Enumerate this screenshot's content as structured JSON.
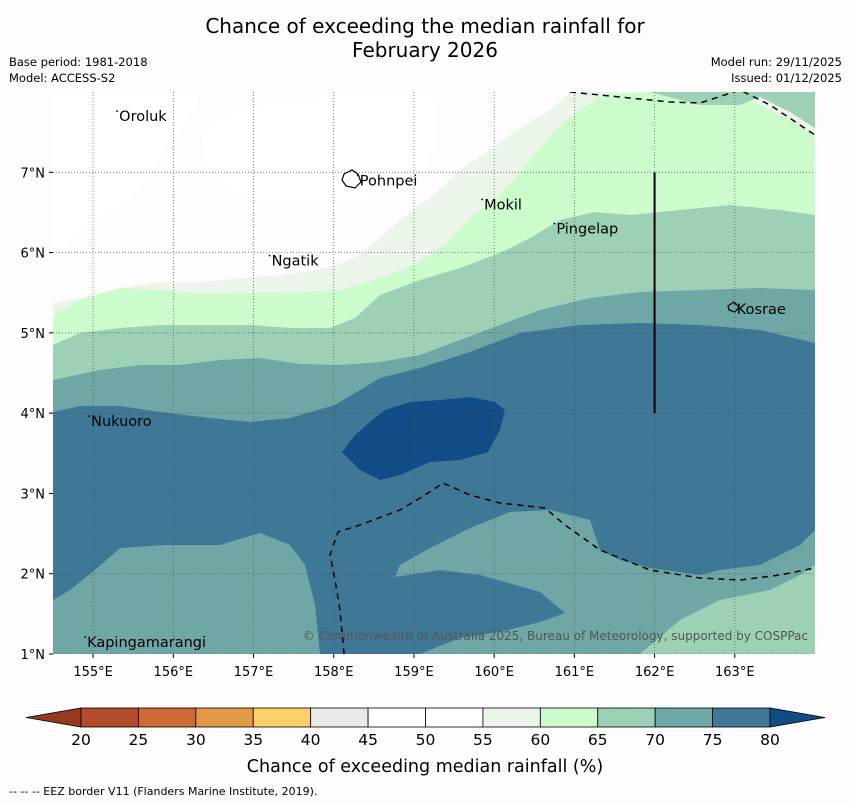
{
  "title_line1": "Chance of exceeding the median rainfall for",
  "title_line2": "February 2026",
  "base_period": "Base period: 1981-2018",
  "model": "Model: ACCESS-S2",
  "model_run": "Model run: 29/11/2025",
  "issued": "Issued: 01/12/2025",
  "copyright": "© Commonwealth of Australia 2025, Bureau of Meteorology, supported by COSPPac",
  "footer": "--  --  -- EEZ border V11 (Flanders Marine Institute, 2019).",
  "map": {
    "lon_range": [
      154.5,
      164.0
    ],
    "lat_range": [
      1.0,
      8.0
    ],
    "lat_ticks": [
      {
        "value": 7,
        "label": "7°N"
      },
      {
        "value": 6,
        "label": "6°N"
      },
      {
        "value": 5,
        "label": "5°N"
      },
      {
        "value": 4,
        "label": "4°N"
      },
      {
        "value": 3,
        "label": "3°N"
      },
      {
        "value": 2,
        "label": "2°N"
      },
      {
        "value": 1,
        "label": "1°N"
      }
    ],
    "lon_ticks": [
      {
        "value": 155,
        "label": "155°E"
      },
      {
        "value": 156,
        "label": "156°E"
      },
      {
        "value": 157,
        "label": "157°E"
      },
      {
        "value": 158,
        "label": "158°E"
      },
      {
        "value": 159,
        "label": "159°E"
      },
      {
        "value": 160,
        "label": "160°E"
      },
      {
        "value": 161,
        "label": "161°E"
      },
      {
        "value": 162,
        "label": "162°E"
      },
      {
        "value": 163,
        "label": "163°E"
      }
    ],
    "places": [
      {
        "name": "Oroluk",
        "lon": 155.3,
        "lat": 7.65
      },
      {
        "name": "Pohnpei",
        "lon": 158.3,
        "lat": 6.85
      },
      {
        "name": "Mokil",
        "lon": 159.85,
        "lat": 6.55
      },
      {
        "name": "Pingelap",
        "lon": 160.75,
        "lat": 6.25
      },
      {
        "name": "Ngatik",
        "lon": 157.2,
        "lat": 5.85
      },
      {
        "name": "Kosrae",
        "lon": 163.0,
        "lat": 5.25
      },
      {
        "name": "Nukuoro",
        "lon": 154.95,
        "lat": 3.85
      },
      {
        "name": "Kapingamarangi",
        "lon": 154.9,
        "lat": 1.1
      }
    ],
    "boundary_segment": {
      "lon": 162.0,
      "lat_start": 4.0,
      "lat_end": 7.0
    }
  },
  "colorbar": {
    "label": "Chance of exceeding median rainfall (%)",
    "ticks": [
      "20",
      "25",
      "30",
      "35",
      "40",
      "45",
      "50",
      "55",
      "60",
      "65",
      "70",
      "75",
      "80"
    ],
    "colors": [
      "#b34c2a",
      "#cf6a34",
      "#e39a48",
      "#fdd06b",
      "#e9e9e6",
      "#ffffff",
      "#ffffff",
      "#ebf5e9",
      "#ccfccc",
      "#9dd1b6",
      "#6fa6a6",
      "#3f7897"
    ],
    "under_color": "#953a20",
    "over_color": "#104c86"
  },
  "contour_colors": {
    "c55": "#fcfdfc",
    "c60": "#ebf5e9",
    "c65": "#ccfccc",
    "c70": "#9dd1b6",
    "c75": "#6fa6a6",
    "c80": "#3f7897",
    "c85": "#104c86"
  }
}
